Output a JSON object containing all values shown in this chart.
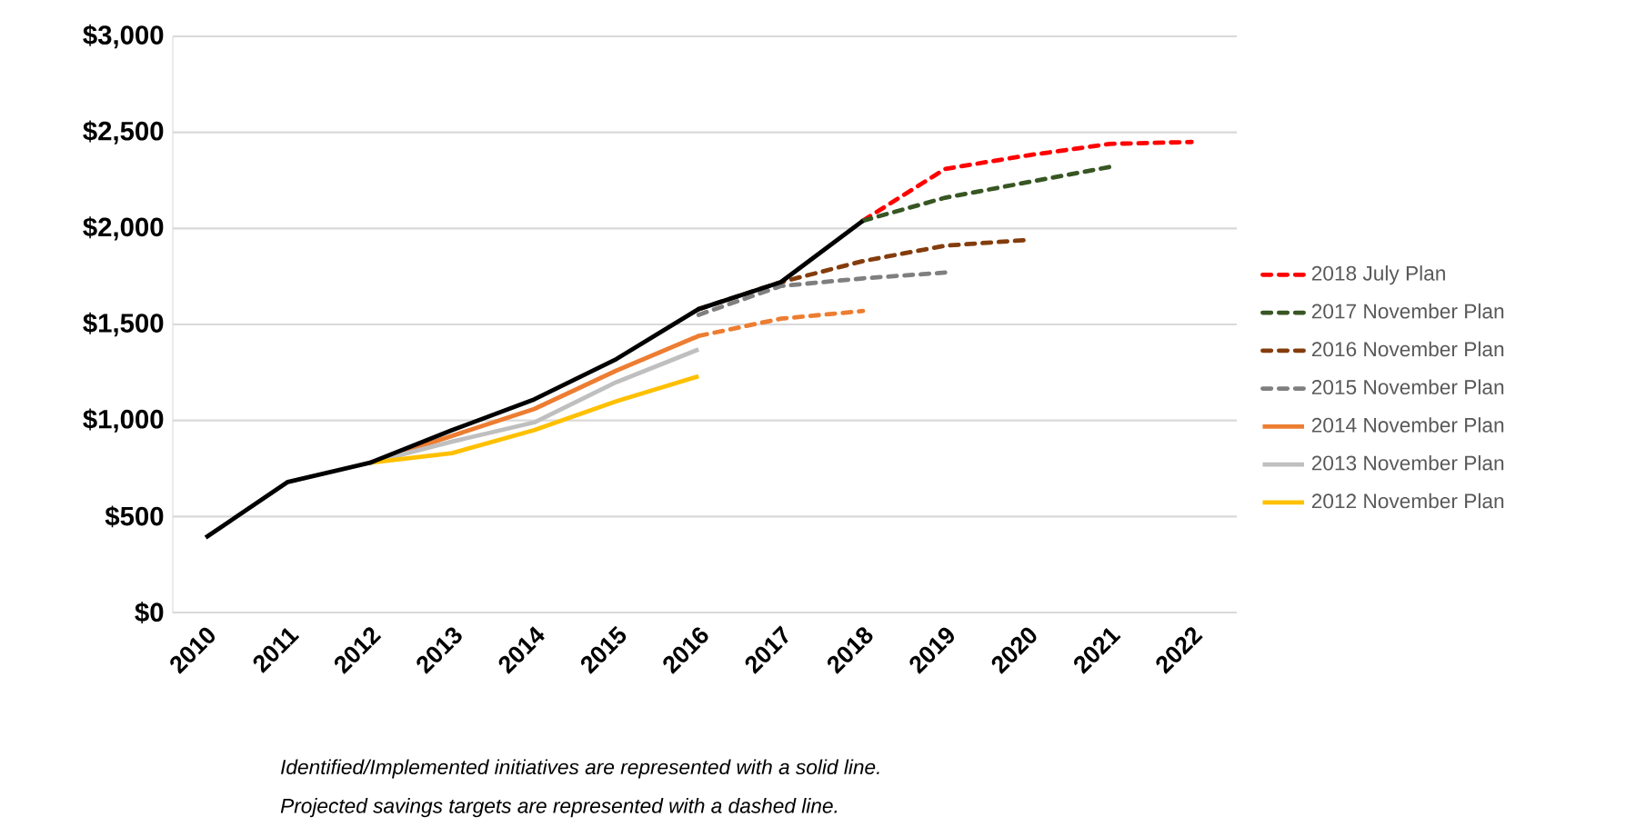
{
  "chart_data": {
    "type": "line",
    "categories": [
      "2010",
      "2011",
      "2012",
      "2013",
      "2014",
      "2015",
      "2016",
      "2017",
      "2018",
      "2019",
      "2020",
      "2021",
      "2022"
    ],
    "ylim": [
      0,
      3000
    ],
    "yticks": [
      {
        "value": 0,
        "label": "$0"
      },
      {
        "value": 500,
        "label": "$500"
      },
      {
        "value": 1000,
        "label": "$1,000"
      },
      {
        "value": 1500,
        "label": "$1,500"
      },
      {
        "value": 2000,
        "label": "$2,000"
      },
      {
        "value": 2500,
        "label": "$2,500"
      },
      {
        "value": 3000,
        "label": "$3,000"
      }
    ],
    "grid": "y",
    "legend": "right",
    "series": [
      {
        "name": "2018 July Plan",
        "color": "#ff0000",
        "line_style": "dashed",
        "values": [
          null,
          null,
          null,
          null,
          null,
          null,
          null,
          null,
          2040,
          2310,
          2380,
          2440,
          2450
        ]
      },
      {
        "name": "2017 November Plan",
        "color": "#375623",
        "line_style": "dashed",
        "values": [
          null,
          null,
          null,
          null,
          null,
          null,
          null,
          null,
          2040,
          2160,
          2240,
          2320,
          null
        ]
      },
      {
        "name": "2016 November Plan",
        "color": "#843c0c",
        "line_style": "dashed",
        "values": [
          null,
          null,
          null,
          null,
          null,
          null,
          1580,
          1720,
          1830,
          1910,
          1940,
          null,
          null
        ]
      },
      {
        "name": "2015 November Plan",
        "color": "#7f7f7f",
        "line_style": "dashed",
        "values": [
          null,
          null,
          null,
          null,
          null,
          null,
          1550,
          1700,
          1740,
          1770,
          null,
          null,
          null
        ]
      },
      {
        "name": "2014 November Plan",
        "color": "#ed7d31",
        "line_style": "solid",
        "values": [
          null,
          null,
          780,
          920,
          1060,
          1260,
          1440,
          null,
          null,
          null,
          null,
          null,
          null
        ]
      },
      {
        "name": "2013 November Plan",
        "color": "#bfbfbf",
        "line_style": "solid",
        "values": [
          null,
          null,
          780,
          890,
          990,
          1200,
          1370,
          null,
          null,
          null,
          null,
          null,
          null
        ]
      },
      {
        "name": "2012 November Plan",
        "color": "#ffc000",
        "line_style": "solid",
        "values": [
          null,
          null,
          780,
          830,
          950,
          1100,
          1230,
          null,
          null,
          null,
          null,
          null,
          null
        ]
      },
      {
        "color": "#ed7d31",
        "line_style": "dashed",
        "values": [
          null,
          null,
          null,
          null,
          null,
          null,
          1440,
          1530,
          1570,
          null,
          null,
          null,
          null
        ]
      },
      {
        "color": "#000000",
        "line_style": "solid",
        "values": [
          390,
          680,
          780,
          950,
          1110,
          1320,
          1580,
          1720,
          2040,
          null,
          null,
          null,
          null
        ]
      }
    ],
    "annotations": [
      "Identified/Implemented initiatives are represented with a solid line.",
      "Projected savings targets are represented with a dashed line."
    ]
  }
}
